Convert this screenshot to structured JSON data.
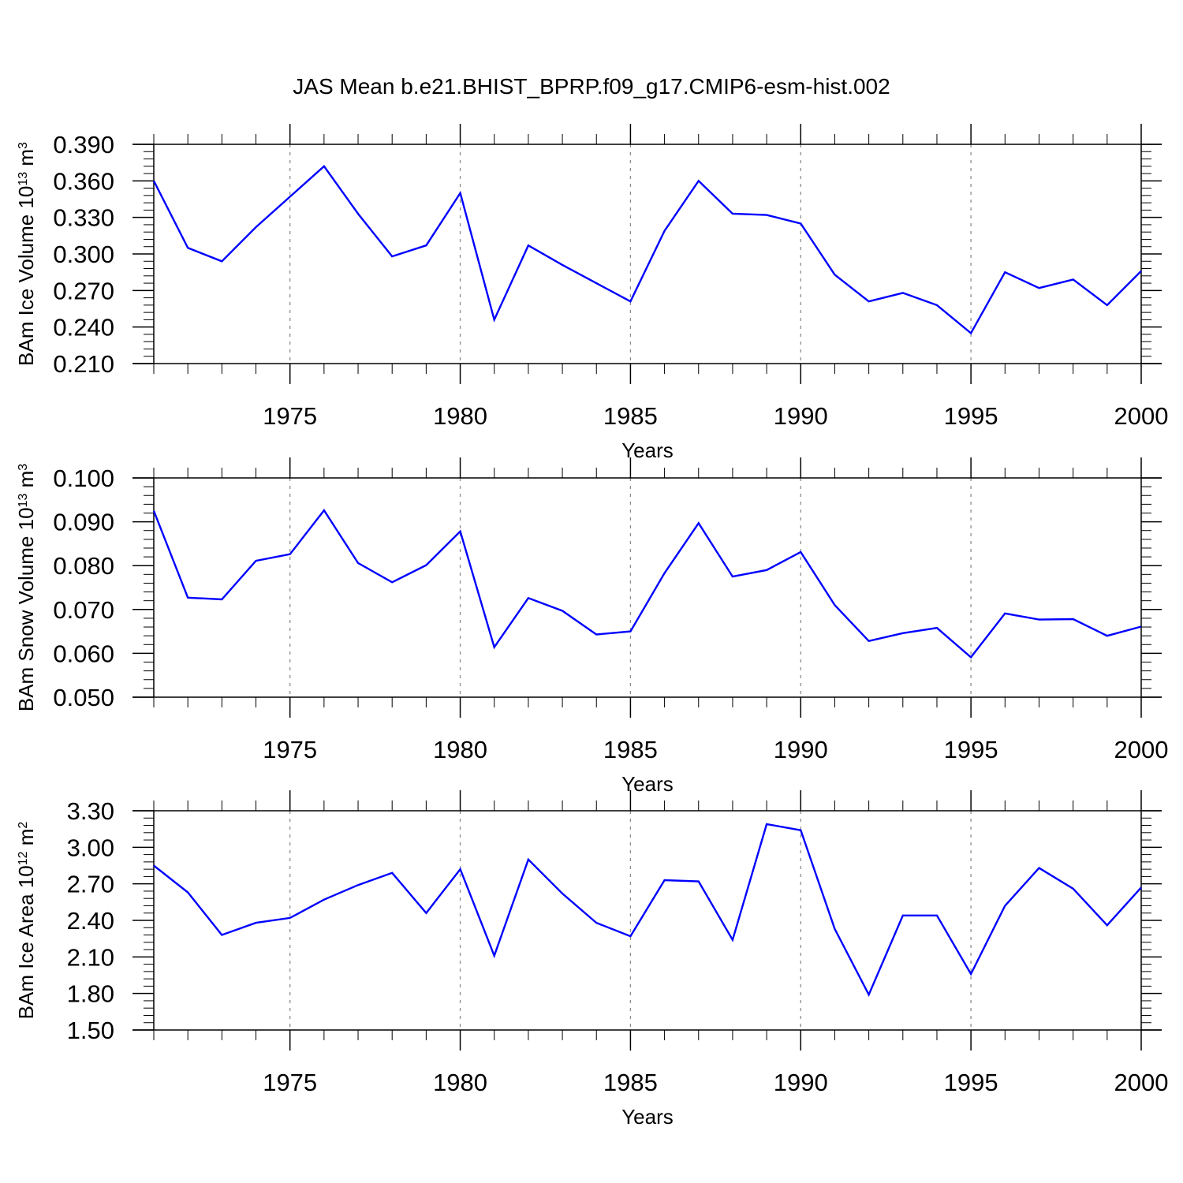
{
  "figure_title": "JAS Mean b.e21.BHIST_BPRP.f09_g17.CMIP6-esm-hist.002",
  "colors": {
    "line": "#0000ff",
    "axis": "#000000",
    "grid": "#8c8c8c"
  },
  "chart_data": [
    {
      "type": "line",
      "title": "",
      "xlabel": "Years",
      "ylabel": {
        "prefix": "BAm Ice Volume 10",
        "sup1": "13",
        "mid": " m",
        "sup2": "3"
      },
      "x": [
        1971,
        1972,
        1973,
        1974,
        1975,
        1976,
        1977,
        1978,
        1979,
        1980,
        1981,
        1982,
        1983,
        1984,
        1985,
        1986,
        1987,
        1988,
        1989,
        1990,
        1991,
        1992,
        1993,
        1994,
        1995,
        1996,
        1997,
        1998,
        1999,
        2000
      ],
      "series": [
        {
          "values": [
            0.36,
            0.305,
            0.294,
            0.322,
            0.347,
            0.372,
            0.333,
            0.298,
            0.307,
            0.35,
            0.246,
            0.307,
            0.291,
            0.276,
            0.261,
            0.319,
            0.36,
            0.333,
            0.332,
            0.325,
            0.283,
            0.261,
            0.268,
            0.258,
            0.235,
            0.285,
            0.272,
            0.279,
            0.258,
            0.286
          ]
        }
      ],
      "xlim": [
        1971,
        2000
      ],
      "ylim": [
        0.21,
        0.39
      ],
      "yticks": [
        0.21,
        0.24,
        0.27,
        0.3,
        0.33,
        0.36,
        0.39
      ],
      "ytick_labels": [
        "0.210",
        "0.240",
        "0.270",
        "0.300",
        "0.330",
        "0.360",
        "0.390"
      ],
      "xticks": [
        1975,
        1980,
        1985,
        1990,
        1995,
        2000
      ],
      "xtick_labels": [
        "1975",
        "1980",
        "1985",
        "1990",
        "1995",
        "2000"
      ],
      "grid": "x-dashed"
    },
    {
      "type": "line",
      "title": "",
      "xlabel": "Years",
      "ylabel": {
        "prefix": "BAm Snow Volume 10",
        "sup1": "13",
        "mid": " m",
        "sup2": "3"
      },
      "x": [
        1971,
        1972,
        1973,
        1974,
        1975,
        1976,
        1977,
        1978,
        1979,
        1980,
        1981,
        1982,
        1983,
        1984,
        1985,
        1986,
        1987,
        1988,
        1989,
        1990,
        1991,
        1992,
        1993,
        1994,
        1995,
        1996,
        1997,
        1998,
        1999,
        2000
      ],
      "series": [
        {
          "values": [
            0.0925,
            0.0727,
            0.0723,
            0.0811,
            0.0826,
            0.0926,
            0.0806,
            0.0762,
            0.0801,
            0.0878,
            0.0614,
            0.0726,
            0.0697,
            0.0643,
            0.065,
            0.0783,
            0.0897,
            0.0775,
            0.079,
            0.0831,
            0.071,
            0.0628,
            0.0646,
            0.0658,
            0.0591,
            0.0691,
            0.0677,
            0.0678,
            0.064,
            0.0661
          ]
        }
      ],
      "xlim": [
        1971,
        2000
      ],
      "ylim": [
        0.05,
        0.1
      ],
      "yticks": [
        0.05,
        0.06,
        0.07,
        0.08,
        0.09,
        0.1
      ],
      "ytick_labels": [
        "0.050",
        "0.060",
        "0.070",
        "0.080",
        "0.090",
        "0.100"
      ],
      "xticks": [
        1975,
        1980,
        1985,
        1990,
        1995,
        2000
      ],
      "xtick_labels": [
        "1975",
        "1980",
        "1985",
        "1990",
        "1995",
        "2000"
      ],
      "grid": "x-dashed"
    },
    {
      "type": "line",
      "title": "",
      "xlabel": "Years",
      "ylabel": {
        "prefix": "BAm Ice Area 10",
        "sup1": "12",
        "mid": " m",
        "sup2": "2"
      },
      "x": [
        1971,
        1972,
        1973,
        1974,
        1975,
        1976,
        1977,
        1978,
        1979,
        1980,
        1981,
        1982,
        1983,
        1984,
        1985,
        1986,
        1987,
        1988,
        1989,
        1990,
        1991,
        1992,
        1993,
        1994,
        1995,
        1996,
        1997,
        1998,
        1999,
        2000
      ],
      "series": [
        {
          "values": [
            2.85,
            2.63,
            2.28,
            2.38,
            2.42,
            2.57,
            2.69,
            2.79,
            2.46,
            2.82,
            2.11,
            2.9,
            2.62,
            2.38,
            2.27,
            2.73,
            2.72,
            2.24,
            3.19,
            3.14,
            2.33,
            1.79,
            2.44,
            2.44,
            1.96,
            2.52,
            2.83,
            2.66,
            2.36,
            2.67
          ]
        }
      ],
      "xlim": [
        1971,
        2000
      ],
      "ylim": [
        1.5,
        3.3
      ],
      "yticks": [
        1.5,
        1.8,
        2.1,
        2.4,
        2.7,
        3.0,
        3.3
      ],
      "ytick_labels": [
        "1.50",
        "1.80",
        "2.10",
        "2.40",
        "2.70",
        "3.00",
        "3.30"
      ],
      "xticks": [
        1975,
        1980,
        1985,
        1990,
        1995,
        2000
      ],
      "xtick_labels": [
        "1975",
        "1980",
        "1985",
        "1990",
        "1995",
        "2000"
      ],
      "grid": "x-dashed"
    }
  ]
}
